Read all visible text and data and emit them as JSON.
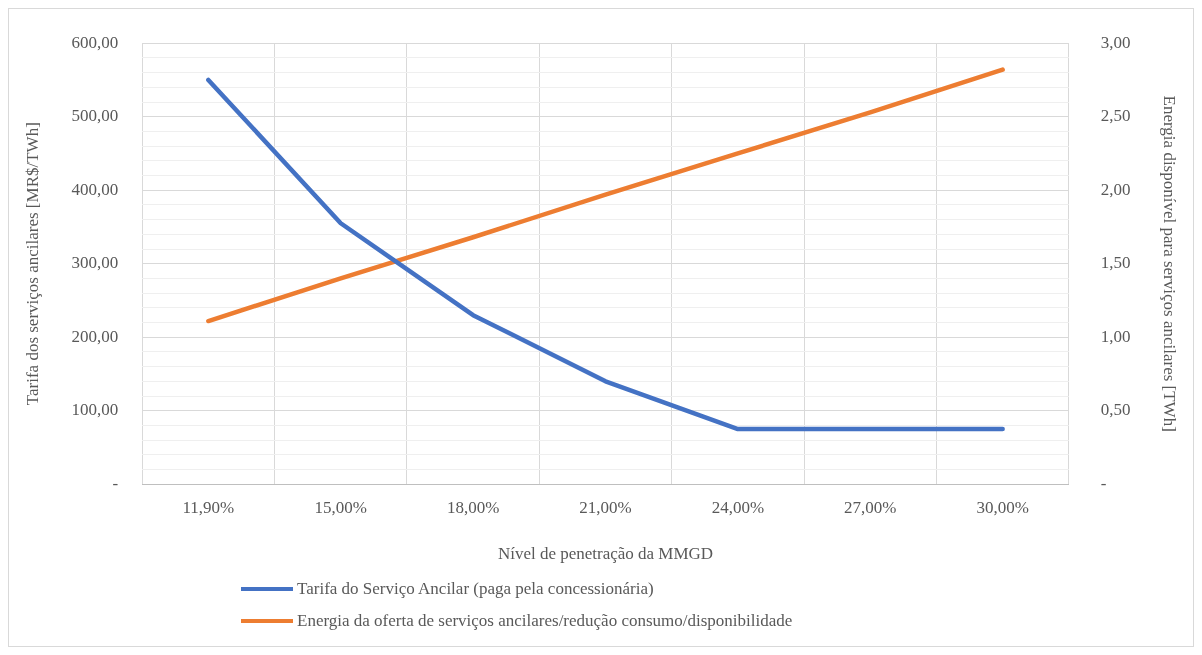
{
  "chart_data": {
    "type": "line",
    "xlabel": "Nível de penetração da MMGD",
    "ylabel": "Tarifa dos serviços ancilares [MR$/TWh]",
    "y2label": "Energia disponível para serviços ancilares [TWh]",
    "categories": [
      "11,90%",
      "15,00%",
      "18,00%",
      "21,00%",
      "24,00%",
      "27,00%",
      "30,00%"
    ],
    "series": [
      {
        "name": "Tarifa do Serviço Ancilar (paga pela concessionária)",
        "color": "#4472c4",
        "values": [
          550,
          355,
          230,
          140,
          75,
          75,
          75
        ]
      },
      {
        "name": "Energia da oferta de serviços ancilares/redução consumo/disponibilidade",
        "color": "#ed7d31",
        "axis": "y2",
        "values": [
          1.11,
          1.4,
          1.68,
          1.97,
          2.25,
          2.53,
          2.82
        ]
      }
    ],
    "ylim": [
      0,
      600
    ],
    "yticks": [
      {
        "value": 0,
        "label": "-"
      },
      {
        "value": 20,
        "label": null
      },
      {
        "value": 40,
        "label": null
      },
      {
        "value": 60,
        "label": null
      },
      {
        "value": 80,
        "label": null
      },
      {
        "value": 100,
        "label": "100,00"
      },
      {
        "value": 120,
        "label": null
      },
      {
        "value": 140,
        "label": null
      },
      {
        "value": 160,
        "label": null
      },
      {
        "value": 180,
        "label": null
      },
      {
        "value": 200,
        "label": "200,00"
      },
      {
        "value": 220,
        "label": null
      },
      {
        "value": 240,
        "label": null
      },
      {
        "value": 260,
        "label": null
      },
      {
        "value": 280,
        "label": null
      },
      {
        "value": 300,
        "label": "300,00"
      },
      {
        "value": 320,
        "label": null
      },
      {
        "value": 340,
        "label": null
      },
      {
        "value": 360,
        "label": null
      },
      {
        "value": 380,
        "label": null
      },
      {
        "value": 400,
        "label": "400,00"
      },
      {
        "value": 420,
        "label": null
      },
      {
        "value": 440,
        "label": null
      },
      {
        "value": 460,
        "label": null
      },
      {
        "value": 480,
        "label": null
      },
      {
        "value": 500,
        "label": "500,00"
      },
      {
        "value": 520,
        "label": null
      },
      {
        "value": 540,
        "label": null
      },
      {
        "value": 560,
        "label": null
      },
      {
        "value": 580,
        "label": null
      },
      {
        "value": 600,
        "label": "600,00"
      }
    ],
    "y2lim": [
      0,
      3
    ],
    "y2ticks": [
      {
        "value": 0,
        "label": "-"
      },
      {
        "value": 0.5,
        "label": "0,50"
      },
      {
        "value": 1,
        "label": "1,00"
      },
      {
        "value": 1.5,
        "label": "1,50"
      },
      {
        "value": 2,
        "label": "2,00"
      },
      {
        "value": 2.5,
        "label": "2,50"
      },
      {
        "value": 3,
        "label": "3,00"
      }
    ],
    "grid": true,
    "legend": "bottom",
    "marker": "none",
    "line_style": "solid"
  }
}
